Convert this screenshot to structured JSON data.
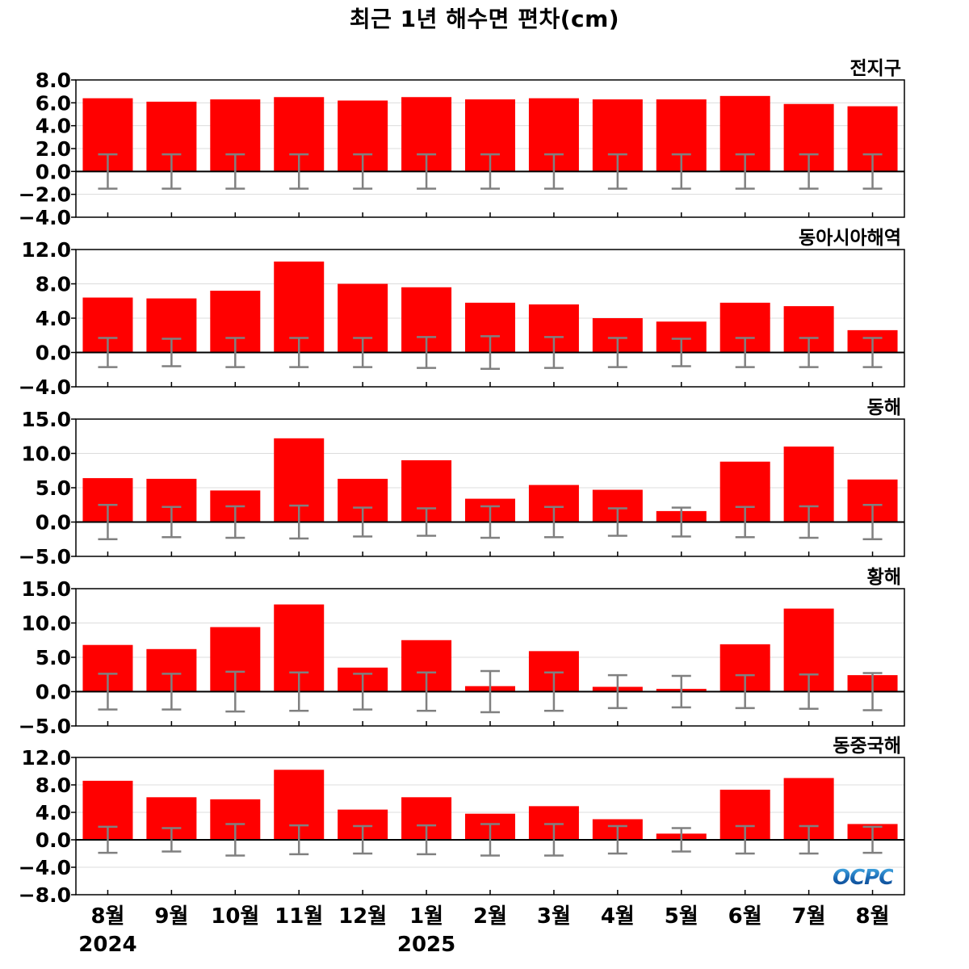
{
  "title": "최근 1년 해수면 편차(cm)",
  "logo_text": "OCPC",
  "colors": {
    "bar": "#ff0000",
    "errorbar": "#808080",
    "zero_line": "#000000",
    "grid": "#dcdcdc"
  },
  "chart_data": {
    "type": "bar",
    "categories": [
      "8월",
      "9월",
      "10월",
      "11월",
      "12월",
      "1월",
      "2월",
      "3월",
      "4월",
      "5월",
      "6월",
      "7월",
      "8월"
    ],
    "year_labels": [
      {
        "text": "2024",
        "index": 0
      },
      {
        "text": "2025",
        "index": 5
      }
    ],
    "panels": [
      {
        "name": "전지구",
        "ylim": [
          -4,
          8
        ],
        "yticks": [
          -4,
          -2,
          0,
          2,
          4,
          6,
          8
        ],
        "yticklabels": [
          "−4.0",
          "−2.0",
          "0.0",
          "2.0",
          "4.0",
          "6.0",
          "8.0"
        ],
        "values": [
          6.4,
          6.1,
          6.3,
          6.5,
          6.2,
          6.5,
          6.3,
          6.4,
          6.3,
          6.3,
          6.6,
          5.9,
          5.7
        ],
        "error": [
          1.5,
          1.5,
          1.5,
          1.5,
          1.5,
          1.5,
          1.5,
          1.5,
          1.5,
          1.5,
          1.5,
          1.5,
          1.5
        ],
        "grid": true
      },
      {
        "name": "동아시아해역",
        "ylim": [
          -4,
          12
        ],
        "yticks": [
          -4,
          0,
          4,
          8,
          12
        ],
        "yticklabels": [
          "−4.0",
          "0.0",
          "4.0",
          "8.0",
          "12.0"
        ],
        "values": [
          6.4,
          6.3,
          7.2,
          10.6,
          8.0,
          7.6,
          5.8,
          5.6,
          4.0,
          3.6,
          5.8,
          5.4,
          2.6
        ],
        "error": [
          1.7,
          1.6,
          1.7,
          1.7,
          1.7,
          1.8,
          1.9,
          1.8,
          1.7,
          1.6,
          1.7,
          1.7,
          1.7
        ],
        "grid": true
      },
      {
        "name": "동해",
        "ylim": [
          -5,
          15
        ],
        "yticks": [
          -5,
          0,
          5,
          10,
          15
        ],
        "yticklabels": [
          "−5.0",
          "0.0",
          "5.0",
          "10.0",
          "15.0"
        ],
        "values": [
          6.4,
          6.3,
          4.6,
          12.2,
          6.3,
          9.0,
          3.4,
          5.4,
          4.7,
          1.6,
          8.8,
          11.0,
          6.2
        ],
        "error": [
          2.5,
          2.2,
          2.3,
          2.4,
          2.1,
          2.0,
          2.3,
          2.2,
          2.0,
          2.1,
          2.2,
          2.3,
          2.5
        ],
        "grid": true
      },
      {
        "name": "황해",
        "ylim": [
          -5,
          15
        ],
        "yticks": [
          -5,
          0,
          5,
          10,
          15
        ],
        "yticklabels": [
          "−5.0",
          "0.0",
          "5.0",
          "10.0",
          "15.0"
        ],
        "values": [
          6.8,
          6.2,
          9.4,
          12.7,
          3.5,
          7.5,
          0.8,
          5.9,
          0.7,
          0.4,
          6.9,
          12.1,
          2.4
        ],
        "error": [
          2.6,
          2.6,
          2.9,
          2.8,
          2.6,
          2.8,
          3.0,
          2.8,
          2.4,
          2.3,
          2.4,
          2.5,
          2.7
        ],
        "grid": true
      },
      {
        "name": "동중국해",
        "ylim": [
          -8,
          12
        ],
        "yticks": [
          -8,
          -4,
          0,
          4,
          8,
          12
        ],
        "yticklabels": [
          "−8.0",
          "−4.0",
          "0.0",
          "4.0",
          "8.0",
          "12.0"
        ],
        "values": [
          8.6,
          6.2,
          5.9,
          10.2,
          4.4,
          6.2,
          3.8,
          4.9,
          3.0,
          0.9,
          7.3,
          9.0,
          2.3
        ],
        "error": [
          1.9,
          1.7,
          2.3,
          2.1,
          2.0,
          2.1,
          2.3,
          2.3,
          2.0,
          1.7,
          2.0,
          2.0,
          1.9
        ],
        "grid": true
      }
    ]
  }
}
